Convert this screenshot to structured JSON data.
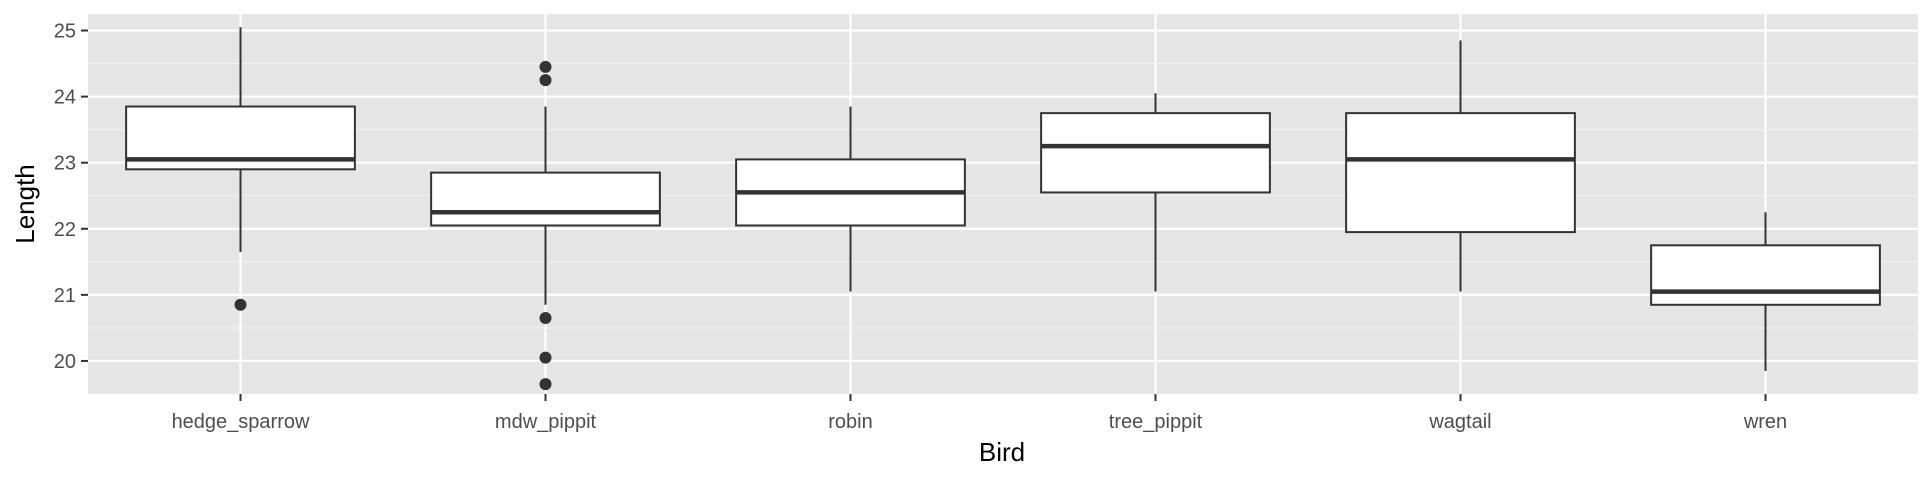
{
  "chart_data": {
    "type": "boxplot",
    "xlabel": "Bird",
    "ylabel": "Length",
    "ylim": [
      19.5,
      25.25
    ],
    "yticks": [
      20,
      21,
      22,
      23,
      24,
      25
    ],
    "grid": true,
    "categories": [
      "hedge_sparrow",
      "mdw_pippit",
      "robin",
      "tree_pippit",
      "wagtail",
      "wren"
    ],
    "boxes": [
      {
        "category": "hedge_sparrow",
        "whisker_low": 21.65,
        "q1": 22.9,
        "median": 23.05,
        "q3": 23.85,
        "whisker_high": 25.05,
        "outliers": [
          20.85
        ]
      },
      {
        "category": "mdw_pippit",
        "whisker_low": 20.85,
        "q1": 22.05,
        "median": 22.25,
        "q3": 22.85,
        "whisker_high": 23.85,
        "outliers": [
          24.45,
          24.25,
          20.65,
          20.05,
          19.65
        ]
      },
      {
        "category": "robin",
        "whisker_low": 21.05,
        "q1": 22.05,
        "median": 22.55,
        "q3": 23.05,
        "whisker_high": 23.85,
        "outliers": []
      },
      {
        "category": "tree_pippit",
        "whisker_low": 21.05,
        "q1": 22.55,
        "median": 23.25,
        "q3": 23.75,
        "whisker_high": 24.05,
        "outliers": []
      },
      {
        "category": "wagtail",
        "whisker_low": 21.05,
        "q1": 21.95,
        "median": 23.05,
        "q3": 23.75,
        "whisker_high": 24.85,
        "outliers": []
      },
      {
        "category": "wren",
        "whisker_low": 19.85,
        "q1": 20.85,
        "median": 21.05,
        "q3": 21.75,
        "whisker_high": 22.25,
        "outliers": []
      }
    ]
  }
}
